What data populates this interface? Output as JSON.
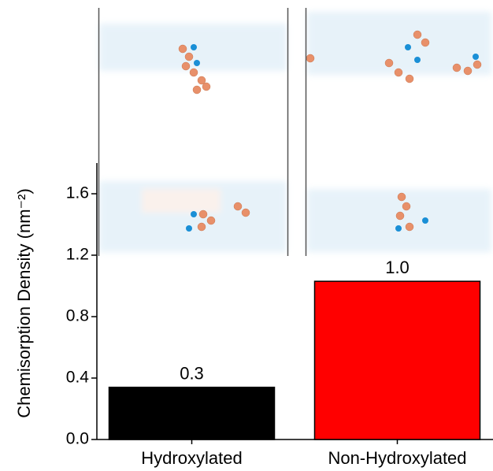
{
  "chart_data": {
    "type": "bar",
    "ylabel": "Chemisorption Density (nm⁻²)",
    "categories": [
      "Hydroxylated",
      "Non-Hydroxylated"
    ],
    "values": [
      0.34,
      1.03
    ],
    "value_labels": [
      "0.3",
      "1.0"
    ],
    "colors": [
      "#000000",
      "#ff0000"
    ],
    "ylim": [
      0,
      1.8
    ],
    "yticks": [
      {
        "value": 0,
        "label": "0.0"
      },
      0.4,
      0.8,
      1.2,
      1.6
    ]
  }
}
